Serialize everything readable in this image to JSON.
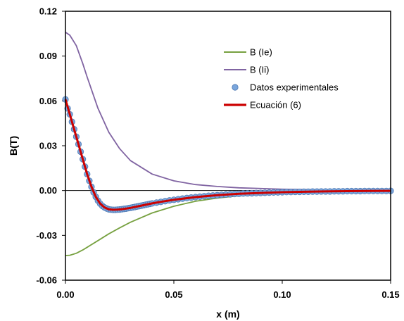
{
  "chart_data": {
    "type": "line",
    "xlabel": "x (m)",
    "ylabel": "B(T)",
    "xlim": [
      0,
      0.15
    ],
    "ylim": [
      -0.06,
      0.12
    ],
    "x_ticks": [
      0,
      0.05,
      0.1,
      0.15
    ],
    "x_tick_labels": [
      "0.00",
      "0.05",
      "0.10",
      "0.15"
    ],
    "y_ticks": [
      -0.06,
      -0.03,
      0,
      0.03,
      0.06,
      0.09,
      0.12
    ],
    "y_tick_labels": [
      "-0.06",
      "-0.03",
      "0.00",
      "0.03",
      "0.06",
      "0.09",
      "0.12"
    ],
    "grid": false,
    "zero_line": true,
    "legend_position": "right",
    "series": [
      {
        "name": "B (Ie)",
        "kind": "line",
        "color": "#77a140",
        "x": [
          0,
          0.002,
          0.005,
          0.008,
          0.01,
          0.015,
          0.02,
          0.025,
          0.03,
          0.04,
          0.05,
          0.06,
          0.07,
          0.08,
          0.09,
          0.1,
          0.12,
          0.15
        ],
        "y": [
          -0.0435,
          -0.0433,
          -0.042,
          -0.0398,
          -0.038,
          -0.0335,
          -0.029,
          -0.025,
          -0.0212,
          -0.015,
          -0.0105,
          -0.0072,
          -0.005,
          -0.0035,
          -0.0024,
          -0.0017,
          -0.0009,
          -0.0004
        ]
      },
      {
        "name": "B (Ii)",
        "kind": "line",
        "color": "#8064a2",
        "x": [
          0,
          0.002,
          0.005,
          0.008,
          0.01,
          0.015,
          0.02,
          0.025,
          0.03,
          0.04,
          0.05,
          0.06,
          0.07,
          0.08,
          0.1,
          0.12,
          0.15
        ],
        "y": [
          0.106,
          0.104,
          0.097,
          0.085,
          0.076,
          0.055,
          0.039,
          0.028,
          0.02,
          0.011,
          0.0065,
          0.004,
          0.0027,
          0.0018,
          0.0009,
          0.0005,
          0.0002
        ]
      },
      {
        "name": "Datos experimentales",
        "kind": "scatter",
        "color": "#7aa6dc",
        "x": [
          0,
          0.001,
          0.002,
          0.003,
          0.004,
          0.005,
          0.006,
          0.007,
          0.008,
          0.009,
          0.01,
          0.011,
          0.012,
          0.013,
          0.014,
          0.015,
          0.016,
          0.017,
          0.018,
          0.019,
          0.02,
          0.021,
          0.022,
          0.023,
          0.024,
          0.025,
          0.026,
          0.027,
          0.028,
          0.029,
          0.03,
          0.031,
          0.032,
          0.033,
          0.034,
          0.035,
          0.036,
          0.037,
          0.038,
          0.039,
          0.04,
          0.042,
          0.044,
          0.046,
          0.048,
          0.05,
          0.052,
          0.054,
          0.056,
          0.058,
          0.06,
          0.062,
          0.064,
          0.066,
          0.068,
          0.07,
          0.072,
          0.074,
          0.076,
          0.078,
          0.08,
          0.082,
          0.084,
          0.086,
          0.088,
          0.09,
          0.092,
          0.094,
          0.096,
          0.098,
          0.1,
          0.102,
          0.104,
          0.106,
          0.108,
          0.11,
          0.112,
          0.114,
          0.116,
          0.118,
          0.12,
          0.122,
          0.124,
          0.126,
          0.128,
          0.13,
          0.132,
          0.134,
          0.136,
          0.138,
          0.14,
          0.142,
          0.144,
          0.146,
          0.148,
          0.15
        ],
        "y": [
          0.061,
          0.055,
          0.051,
          0.046,
          0.041,
          0.036,
          0.031,
          0.026,
          0.021,
          0.016,
          0.011,
          0.0065,
          0.0025,
          -0.0012,
          -0.0042,
          -0.0068,
          -0.0088,
          -0.0103,
          -0.0113,
          -0.012,
          -0.0126,
          -0.0128,
          -0.0129,
          -0.0129,
          -0.0128,
          -0.0127,
          -0.0125,
          -0.0123,
          -0.0121,
          -0.0118,
          -0.0116,
          -0.0113,
          -0.011,
          -0.0107,
          -0.0104,
          -0.0101,
          -0.0098,
          -0.0095,
          -0.0092,
          -0.0089,
          -0.0086,
          -0.0081,
          -0.0076,
          -0.0071,
          -0.0066,
          -0.0062,
          -0.0058,
          -0.0054,
          -0.005,
          -0.0047,
          -0.0044,
          -0.0041,
          -0.0038,
          -0.0035,
          -0.0033,
          -0.0031,
          -0.0029,
          -0.0027,
          -0.0025,
          -0.0023,
          -0.0022,
          -0.002,
          -0.0019,
          -0.0018,
          -0.0017,
          -0.0016,
          -0.0015,
          -0.0014,
          -0.0013,
          -0.0012,
          -0.0011,
          -0.001,
          -0.001,
          -0.0009,
          -0.0009,
          -0.0008,
          -0.0008,
          -0.0007,
          -0.0007,
          -0.0006,
          -0.0006,
          -0.0006,
          -0.0005,
          -0.0005,
          -0.0005,
          -0.0004,
          -0.0004,
          -0.0004,
          -0.0004,
          -0.0003,
          -0.0003,
          -0.0003,
          -0.0003,
          -0.0003,
          -0.0003,
          -0.0002
        ]
      },
      {
        "name": "Ecuación (6)",
        "kind": "line",
        "color": "#cc0000",
        "x": [
          0,
          0.002,
          0.004,
          0.006,
          0.008,
          0.01,
          0.012,
          0.014,
          0.016,
          0.018,
          0.02,
          0.022,
          0.024,
          0.026,
          0.028,
          0.03,
          0.035,
          0.04,
          0.045,
          0.05,
          0.06,
          0.07,
          0.08,
          0.09,
          0.1,
          0.11,
          0.12,
          0.13,
          0.14,
          0.15
        ],
        "y": [
          0.061,
          0.051,
          0.041,
          0.031,
          0.021,
          0.011,
          0.0025,
          -0.0042,
          -0.0088,
          -0.0113,
          -0.0126,
          -0.0129,
          -0.0128,
          -0.0125,
          -0.0121,
          -0.0116,
          -0.0101,
          -0.0086,
          -0.0073,
          -0.0062,
          -0.0044,
          -0.0031,
          -0.0022,
          -0.0016,
          -0.0011,
          -0.0008,
          -0.0006,
          -0.0004,
          -0.0003,
          -0.0002
        ]
      }
    ]
  }
}
